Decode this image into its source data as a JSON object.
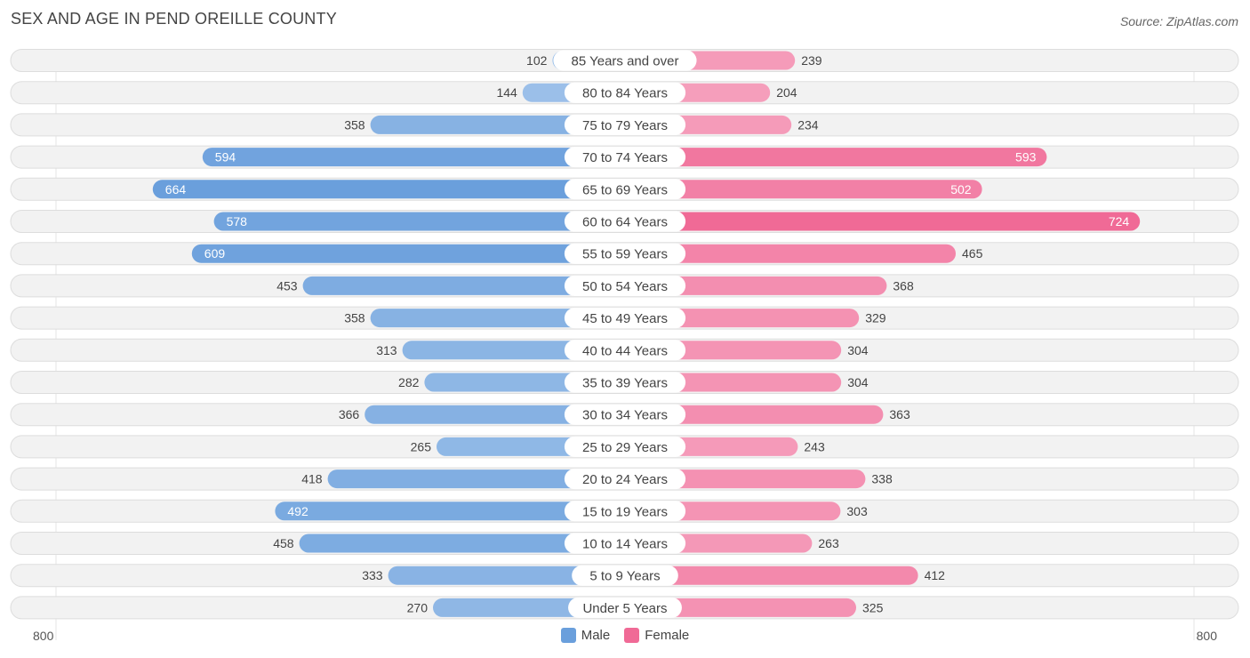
{
  "title": "SEX AND AGE IN PEND OREILLE COUNTY",
  "source": "Source: ZipAtlas.com",
  "axis": {
    "left_label": "800",
    "right_label": "800"
  },
  "legend": {
    "male_label": "Male",
    "female_label": "Female"
  },
  "colors": {
    "male_light": "#a8c8ec",
    "male_dark": "#6a9fdc",
    "female_light": "#f7b3ca",
    "female_dark": "#f06a96",
    "row_bg": "#f2f2f2",
    "row_border": "#dddddd"
  },
  "chart_data": {
    "type": "bar",
    "orientation": "horizontal-diverging",
    "title": "SEX AND AGE IN PEND OREILLE COUNTY",
    "xlim": [
      -800,
      800
    ],
    "categories": [
      "85 Years and over",
      "80 to 84 Years",
      "75 to 79 Years",
      "70 to 74 Years",
      "65 to 69 Years",
      "60 to 64 Years",
      "55 to 59 Years",
      "50 to 54 Years",
      "45 to 49 Years",
      "40 to 44 Years",
      "35 to 39 Years",
      "30 to 34 Years",
      "25 to 29 Years",
      "20 to 24 Years",
      "15 to 19 Years",
      "10 to 14 Years",
      "5 to 9 Years",
      "Under 5 Years"
    ],
    "series": [
      {
        "name": "Male",
        "values": [
          102,
          144,
          358,
          594,
          664,
          578,
          609,
          453,
          358,
          313,
          282,
          366,
          265,
          418,
          492,
          458,
          333,
          270
        ]
      },
      {
        "name": "Female",
        "values": [
          239,
          204,
          234,
          593,
          502,
          724,
          465,
          368,
          329,
          304,
          304,
          363,
          243,
          338,
          303,
          263,
          412,
          325
        ]
      }
    ]
  }
}
